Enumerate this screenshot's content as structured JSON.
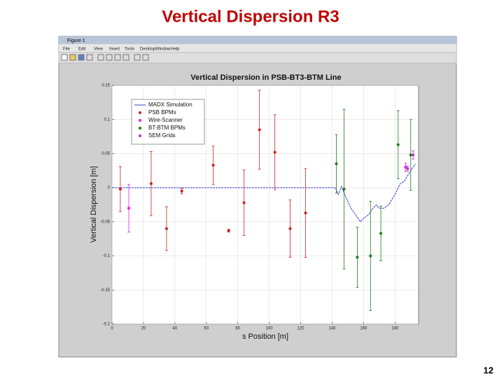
{
  "slide": {
    "title": "Vertical Dispersion R3",
    "page_number": "12"
  },
  "window": {
    "title": "Figure 1",
    "menu": [
      "File",
      "Edit",
      "View",
      "Insert",
      "Tools",
      "Desktop",
      "Window",
      "Help"
    ]
  },
  "chart_data": {
    "type": "scatter",
    "title": "Vertical Dispersion in PSB-BT3-BTM Line",
    "x_label": "s Position [m]",
    "y_label": "Vertical Dispersion [m]",
    "xlim": [
      0,
      195
    ],
    "xticks": [
      0,
      20,
      40,
      60,
      80,
      100,
      120,
      140,
      160,
      180
    ],
    "ylim": [
      -0.2,
      0.15
    ],
    "yticks": [
      -0.2,
      -0.15,
      -0.1,
      -0.05,
      0,
      0.05,
      0.1,
      0.15
    ],
    "grid": true,
    "legend": "upper left",
    "series": [
      {
        "name": "MADX Simulation",
        "type": "line",
        "color": "#3a3ad0",
        "x": [
          0,
          142,
          144,
          146,
          148,
          150,
          152,
          155,
          158,
          160,
          163,
          166,
          168,
          170,
          173,
          176,
          180,
          183,
          186,
          190,
          193
        ],
        "values": [
          0,
          0,
          -0.01,
          0.002,
          -0.01,
          -0.02,
          -0.03,
          -0.04,
          -0.05,
          -0.045,
          -0.04,
          -0.03,
          -0.025,
          -0.03,
          -0.03,
          -0.025,
          -0.01,
          0.005,
          0.01,
          0.025,
          0.035
        ]
      },
      {
        "name": "PSB BPMs",
        "color": "#d02020",
        "x": [
          5.3,
          24.9,
          34.7,
          44.4,
          64.4,
          74.2,
          84,
          93.8,
          103.6,
          113.3,
          123.1
        ],
        "values": [
          -0.002,
          0.006,
          -0.06,
          -0.005,
          0.033,
          -0.063,
          -0.022,
          0.085,
          0.052,
          -0.06,
          -0.037
        ],
        "errors": [
          0.033,
          0.047,
          0.032,
          0.004,
          0.028,
          0.002,
          0.048,
          0.058,
          0.055,
          0.042,
          0.065
        ]
      },
      {
        "name": "Wire-Scanner",
        "color": "#e020e0",
        "x": [
          10.7,
          188
        ],
        "values": [
          -0.03,
          0.028
        ],
        "errors": [
          0.035,
          0.004
        ]
      },
      {
        "name": "BT-BTM BPMs",
        "color": "#1e7a1e",
        "x": [
          142.7,
          147.6,
          156,
          164.4,
          171,
          182,
          190
        ],
        "values": [
          0.035,
          -0.002,
          -0.102,
          -0.1,
          -0.067,
          0.063,
          0.048
        ],
        "errors": [
          0.043,
          0.117,
          0.044,
          0.08,
          0.04,
          0.05,
          0.052
        ]
      },
      {
        "name": "SEM Grids",
        "color": "#c030e0",
        "x": [
          186.7,
          191.5
        ],
        "values": [
          0.03,
          0.048
        ],
        "errors": [
          0.006,
          0.006
        ]
      }
    ]
  }
}
